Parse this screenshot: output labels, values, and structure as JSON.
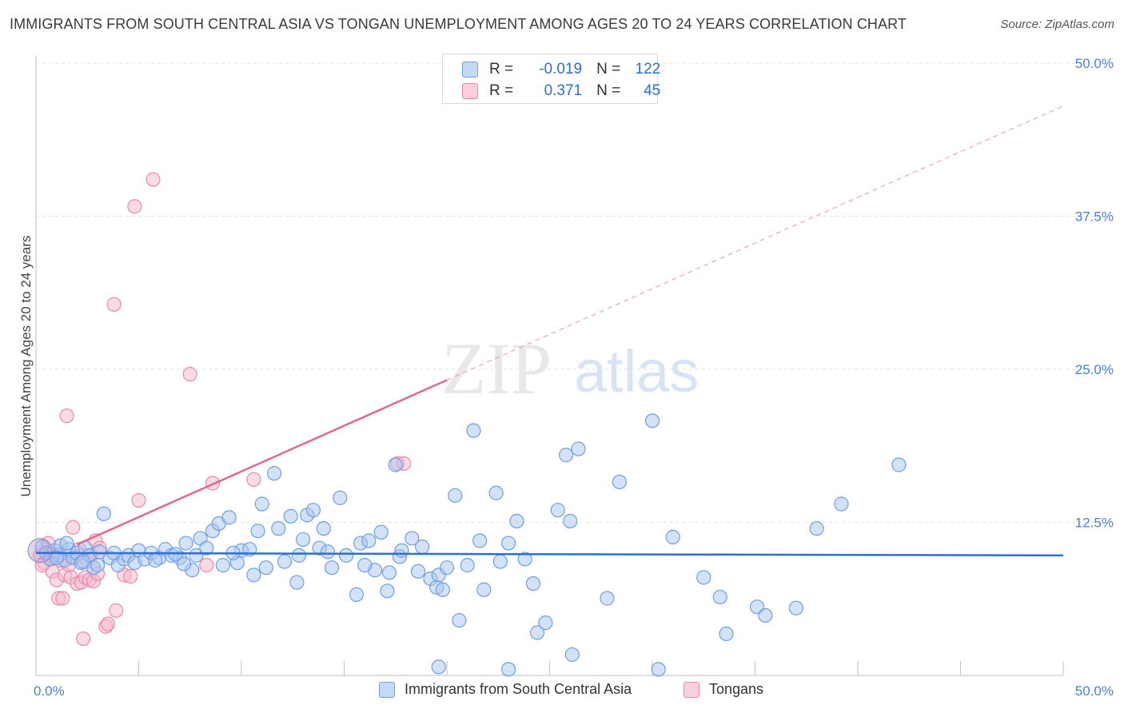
{
  "header": {
    "title": "IMMIGRANTS FROM SOUTH CENTRAL ASIA VS TONGAN UNEMPLOYMENT AMONG AGES 20 TO 24 YEARS CORRELATION CHART",
    "source": "Source: ZipAtlas.com"
  },
  "watermark": {
    "zip": "ZIP",
    "atlas": "atlas"
  },
  "colors": {
    "blue_fill": "#a9c6f0",
    "blue_stroke": "#6f9fe0",
    "blue_line": "#2f6fd0",
    "pink_fill": "#f6b8cc",
    "pink_stroke": "#e88aa8",
    "pink_line": "#e06890",
    "tick_label": "#4a7fd4",
    "grid": "#e3e3e3"
  },
  "stats": {
    "rows": [
      {
        "r_label": "R =",
        "r_value": "-0.019",
        "n_label": "N =",
        "n_value": "122"
      },
      {
        "r_label": "R =",
        "r_value": "0.371",
        "n_label": "N =",
        "n_value": "45"
      }
    ]
  },
  "chart_data": {
    "type": "scatter",
    "title": "IMMIGRANTS FROM SOUTH CENTRAL ASIA VS TONGAN UNEMPLOYMENT AMONG AGES 20 TO 24 YEARS CORRELATION CHART",
    "xlabel": "",
    "ylabel": "Unemployment Among Ages 20 to 24 years",
    "xlim": [
      0,
      50
    ],
    "ylim": [
      0,
      50
    ],
    "x_tick_labels": [
      "0.0%",
      "50.0%"
    ],
    "y_tick_labels": [
      "12.5%",
      "25.0%",
      "37.5%",
      "50.0%"
    ],
    "y_ticks": [
      12.5,
      25.0,
      37.5,
      50.0
    ],
    "grid": true,
    "legend_position": "bottom",
    "series": [
      {
        "name": "Immigrants from South Central Asia",
        "color": "#a9c6f0",
        "trend": {
          "x": [
            0,
            50
          ],
          "y": [
            10.0,
            9.8
          ],
          "style": "solid"
        },
        "points": [
          [
            0.3,
            10.5
          ],
          [
            0.5,
            10.0
          ],
          [
            0.7,
            9.5
          ],
          [
            0.9,
            10.2
          ],
          [
            1.1,
            9.8
          ],
          [
            1.2,
            10.6
          ],
          [
            1.4,
            9.4
          ],
          [
            1.6,
            10.3
          ],
          [
            1.8,
            9.6
          ],
          [
            2.0,
            10.0
          ],
          [
            2.2,
            9.2
          ],
          [
            2.4,
            10.4
          ],
          [
            2.6,
            9.8
          ],
          [
            2.8,
            8.8
          ],
          [
            3.0,
            9.0
          ],
          [
            3.3,
            13.2
          ],
          [
            3.6,
            9.6
          ],
          [
            3.8,
            10.0
          ],
          [
            4.0,
            9.0
          ],
          [
            4.3,
            9.5
          ],
          [
            4.5,
            9.8
          ],
          [
            4.8,
            9.2
          ],
          [
            5.0,
            10.2
          ],
          [
            5.3,
            9.5
          ],
          [
            5.6,
            10.0
          ],
          [
            6.0,
            9.6
          ],
          [
            6.3,
            10.3
          ],
          [
            6.6,
            9.8
          ],
          [
            7.0,
            9.6
          ],
          [
            7.3,
            10.8
          ],
          [
            7.6,
            8.6
          ],
          [
            7.8,
            9.8
          ],
          [
            8.0,
            11.2
          ],
          [
            8.3,
            10.4
          ],
          [
            8.6,
            11.8
          ],
          [
            8.9,
            12.4
          ],
          [
            9.1,
            9.0
          ],
          [
            9.4,
            12.9
          ],
          [
            9.8,
            9.2
          ],
          [
            10.0,
            10.2
          ],
          [
            10.4,
            10.3
          ],
          [
            10.6,
            8.2
          ],
          [
            10.8,
            11.8
          ],
          [
            11.0,
            14.0
          ],
          [
            11.2,
            8.8
          ],
          [
            11.6,
            16.5
          ],
          [
            11.8,
            12.0
          ],
          [
            12.1,
            9.3
          ],
          [
            12.4,
            13.0
          ],
          [
            12.7,
            7.6
          ],
          [
            13.0,
            11.1
          ],
          [
            13.2,
            13.1
          ],
          [
            13.5,
            13.5
          ],
          [
            13.8,
            10.4
          ],
          [
            14.0,
            12.0
          ],
          [
            14.4,
            8.8
          ],
          [
            14.8,
            14.5
          ],
          [
            15.1,
            9.8
          ],
          [
            15.6,
            6.6
          ],
          [
            15.8,
            10.8
          ],
          [
            16.2,
            11.0
          ],
          [
            16.5,
            8.6
          ],
          [
            16.8,
            11.7
          ],
          [
            17.1,
            6.9
          ],
          [
            17.5,
            17.2
          ],
          [
            17.7,
            9.7
          ],
          [
            18.3,
            11.2
          ],
          [
            18.6,
            8.5
          ],
          [
            19.2,
            7.9
          ],
          [
            19.5,
            7.2
          ],
          [
            19.6,
            8.2
          ],
          [
            19.8,
            7.0
          ],
          [
            20.0,
            8.8
          ],
          [
            20.4,
            14.7
          ],
          [
            20.6,
            4.5
          ],
          [
            21.0,
            9.0
          ],
          [
            21.3,
            20.0
          ],
          [
            21.6,
            11.0
          ],
          [
            21.8,
            7.0
          ],
          [
            22.4,
            14.9
          ],
          [
            22.6,
            9.3
          ],
          [
            23.0,
            10.8
          ],
          [
            23.4,
            12.6
          ],
          [
            23.8,
            9.5
          ],
          [
            24.2,
            7.5
          ],
          [
            24.4,
            3.5
          ],
          [
            24.8,
            4.3
          ],
          [
            25.4,
            13.5
          ],
          [
            25.8,
            18.0
          ],
          [
            26.0,
            12.6
          ],
          [
            26.1,
            1.7
          ],
          [
            26.4,
            18.5
          ],
          [
            27.8,
            6.3
          ],
          [
            28.4,
            15.8
          ],
          [
            30.0,
            20.8
          ],
          [
            31.0,
            11.3
          ],
          [
            32.5,
            8.0
          ],
          [
            33.3,
            6.4
          ],
          [
            33.6,
            3.4
          ],
          [
            35.1,
            5.6
          ],
          [
            35.5,
            4.9
          ],
          [
            37.0,
            5.5
          ],
          [
            38.0,
            12.0
          ],
          [
            39.2,
            14.0
          ],
          [
            42.0,
            17.2
          ],
          [
            17.2,
            8.4
          ],
          [
            18.8,
            10.5
          ],
          [
            19.6,
            0.7
          ],
          [
            23.0,
            0.5
          ],
          [
            30.3,
            0.5
          ],
          [
            1.0,
            9.6
          ],
          [
            1.5,
            10.8
          ],
          [
            2.3,
            9.3
          ],
          [
            3.1,
            10.1
          ],
          [
            5.8,
            9.4
          ],
          [
            6.8,
            9.9
          ],
          [
            7.2,
            9.1
          ],
          [
            9.6,
            10.0
          ],
          [
            12.8,
            9.8
          ],
          [
            14.2,
            10.1
          ],
          [
            16.0,
            9.0
          ],
          [
            17.8,
            10.2
          ]
        ]
      },
      {
        "name": "Tongans",
        "color": "#f6b8cc",
        "trend": {
          "x": [
            0,
            50
          ],
          "y": [
            9.2,
            46.5
          ],
          "solid_until_x": 20.0,
          "style": "solid-then-dashed"
        },
        "points": [
          [
            0.2,
            9.8
          ],
          [
            0.4,
            9.2
          ],
          [
            0.5,
            10.0
          ],
          [
            0.6,
            10.8
          ],
          [
            0.7,
            9.5
          ],
          [
            0.8,
            8.5
          ],
          [
            0.9,
            9.9
          ],
          [
            1.0,
            7.8
          ],
          [
            1.1,
            6.3
          ],
          [
            1.3,
            6.3
          ],
          [
            1.4,
            8.2
          ],
          [
            1.5,
            21.2
          ],
          [
            1.6,
            9.0
          ],
          [
            1.7,
            8.0
          ],
          [
            1.8,
            12.1
          ],
          [
            1.9,
            9.7
          ],
          [
            2.0,
            7.5
          ],
          [
            2.1,
            10.3
          ],
          [
            2.2,
            7.6
          ],
          [
            2.3,
            3.0
          ],
          [
            2.4,
            8.0
          ],
          [
            2.5,
            9.3
          ],
          [
            2.6,
            7.8
          ],
          [
            2.7,
            9.8
          ],
          [
            2.8,
            7.7
          ],
          [
            2.9,
            11.0
          ],
          [
            3.0,
            8.3
          ],
          [
            3.1,
            10.4
          ],
          [
            3.4,
            4.0
          ],
          [
            3.5,
            4.2
          ],
          [
            3.8,
            30.3
          ],
          [
            3.9,
            5.3
          ],
          [
            4.3,
            8.2
          ],
          [
            4.6,
            8.1
          ],
          [
            4.8,
            38.3
          ],
          [
            5.0,
            14.3
          ],
          [
            5.7,
            40.5
          ],
          [
            7.5,
            24.6
          ],
          [
            8.3,
            9.0
          ],
          [
            8.6,
            15.7
          ],
          [
            10.6,
            16.0
          ],
          [
            17.6,
            17.3
          ],
          [
            17.9,
            17.3
          ],
          [
            0.3,
            9.0
          ],
          [
            1.2,
            9.4
          ]
        ]
      }
    ]
  },
  "legend": {
    "items": [
      {
        "label": "Immigrants from South Central Asia"
      },
      {
        "label": "Tongans"
      }
    ]
  }
}
